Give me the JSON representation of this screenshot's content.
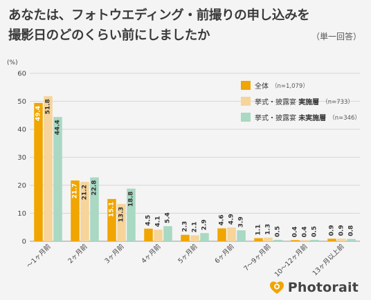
{
  "title_line1": "あなたは、フォトウエディング・前撮りの申し込みを",
  "title_line2": "撮影日のどのくらい前にしましたか",
  "subtitle": "（単一回答）",
  "logo_text": "Photorait",
  "chart_data": {
    "type": "bar",
    "unit_label": "(%)",
    "ylim": [
      0,
      60
    ],
    "yticks": [
      0,
      10,
      20,
      30,
      40,
      50,
      60
    ],
    "grid": true,
    "legend_position": "top-right",
    "categories": [
      "～1ヶ月前",
      "2ヶ月前",
      "3ヶ月前",
      "4ヶ月前",
      "5ヶ月前",
      "6ヶ月前",
      "7～9ヶ月前",
      "10～12ヶ月前",
      "13ヶ月以上前"
    ],
    "series": [
      {
        "name": "全体",
        "note": "（n=1,079）",
        "color": "#f0a500",
        "values": [
          49.4,
          21.7,
          15.1,
          4.5,
          2.3,
          4.6,
          1.1,
          0.4,
          0.9
        ]
      },
      {
        "name": "挙式・披露宴 実施層",
        "name_plain": "挙式・披露宴 ",
        "name_bold": "実施層",
        "note": "（n=733）",
        "color": "#f6d49a",
        "values": [
          51.8,
          21.2,
          13.3,
          4.1,
          2.1,
          4.9,
          1.3,
          0.4,
          0.9
        ]
      },
      {
        "name": "挙式・披露宴 未実施層",
        "name_plain": "挙式・披露宴 ",
        "name_bold": "未実施層",
        "note": "（n=346）",
        "color": "#a9d8c3",
        "values": [
          44.4,
          22.8,
          18.8,
          5.4,
          2.9,
          3.9,
          0.5,
          0.5,
          0.8
        ]
      }
    ]
  }
}
